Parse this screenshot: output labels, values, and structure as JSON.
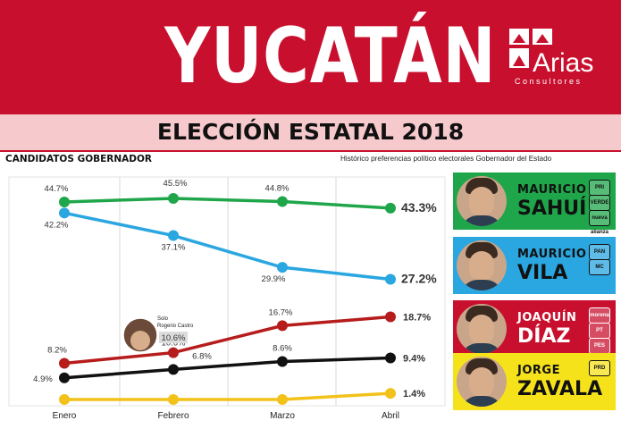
{
  "header": {
    "title": "YUCATÁN",
    "logo": {
      "name": "Arias",
      "sub": "Consultores"
    }
  },
  "subtitle": "ELECCIÓN ESTATAL 2018",
  "section": {
    "left": "CANDIDATOS GOBERNADOR",
    "right": "Histórico preferencias político electorales Gobernador del Estado"
  },
  "colors": {
    "header": "#c8102e",
    "band": "#f6c9cc"
  },
  "chart_data": {
    "type": "line",
    "categories": [
      "Enero",
      "Febrero",
      "Marzo",
      "Abril"
    ],
    "ylim": [
      0,
      50
    ],
    "grid": "vertical",
    "series": [
      {
        "name": "MAURICIO SAHUÍ",
        "color": "#1fa64a",
        "values": [
          44.7,
          45.5,
          44.8,
          43.3
        ],
        "labels": [
          "44.7%",
          "45.5%",
          "44.8%",
          "43.3%"
        ]
      },
      {
        "name": "MAURICIO VILA",
        "color": "#2aa6e0",
        "values": [
          42.2,
          37.1,
          29.9,
          27.2
        ],
        "labels": [
          "42.2%",
          "37.1%",
          "29.9%",
          "27.2%"
        ]
      },
      {
        "name": "JOAQUÍN DÍAZ",
        "color": "#b71c1c",
        "values": [
          8.2,
          10.6,
          16.7,
          18.7
        ],
        "labels": [
          "8.2%",
          "10.6%",
          "16.7%",
          "18.7%"
        ]
      },
      {
        "name": "JORGE ZAVALA",
        "color": "#111111",
        "values": [
          4.9,
          6.8,
          8.6,
          9.4
        ],
        "labels": [
          "4.9%",
          "6.8%",
          "8.6%",
          "9.4%"
        ]
      },
      {
        "name": "",
        "color": "#f2c21b",
        "values": [
          0,
          0,
          0,
          1.4
        ],
        "labels": [
          "",
          "",
          "",
          "1.4%"
        ]
      }
    ],
    "annotation": {
      "line1": "Solo",
      "line2": "Rogerio Castro",
      "value": "10.6%"
    }
  },
  "candidates": [
    {
      "first": "MAURICIO",
      "last": "SAHUÍ",
      "bg": "#1fa64a",
      "text": "#111111",
      "badges": [
        "PRI",
        "VERDE",
        "nueva alianza"
      ]
    },
    {
      "first": "MAURICIO",
      "last": "VILA",
      "bg": "#2aa6e0",
      "text": "#111111",
      "badges": [
        "PAN",
        "MC"
      ]
    },
    {
      "first": "JOAQUÍN",
      "last": "DÍAZ",
      "bg": "#c8102e",
      "text": "#ffffff",
      "badges": [
        "morena",
        "PT",
        "PES"
      ]
    },
    {
      "first": "JORGE",
      "last": "ZAVALA",
      "bg": "#f6e21b",
      "text": "#111111",
      "badges": [
        "PRD"
      ]
    }
  ]
}
